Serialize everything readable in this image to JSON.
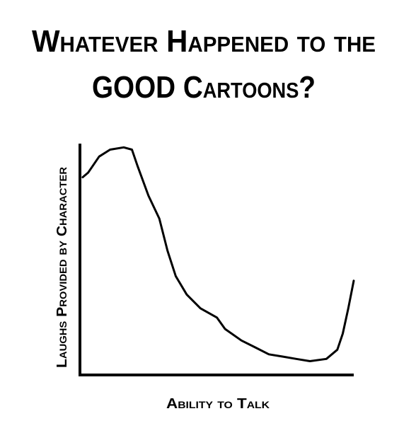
{
  "chart_data": {
    "type": "line",
    "title": [
      "Whatever Happened to the",
      "GOOD Cartoons?"
    ],
    "x_label": "Ability to Talk",
    "y_label": "Laughs Provided by Character",
    "xlim": [
      0,
      100
    ],
    "ylim": [
      0,
      100
    ],
    "series": [
      {
        "color": "#000000",
        "x": [
          1,
          3,
          7,
          11,
          16,
          19,
          21,
          25,
          29,
          32,
          35,
          39,
          44,
          50,
          53,
          59,
          64,
          69,
          74,
          79,
          84,
          90,
          94,
          96,
          98,
          100
        ],
        "values": [
          86,
          88,
          95,
          98,
          99,
          98,
          91,
          78,
          68,
          54,
          43,
          35,
          29,
          25,
          20,
          15,
          12,
          9,
          8,
          7,
          6,
          7,
          11,
          18,
          29,
          41
        ]
      }
    ]
  }
}
